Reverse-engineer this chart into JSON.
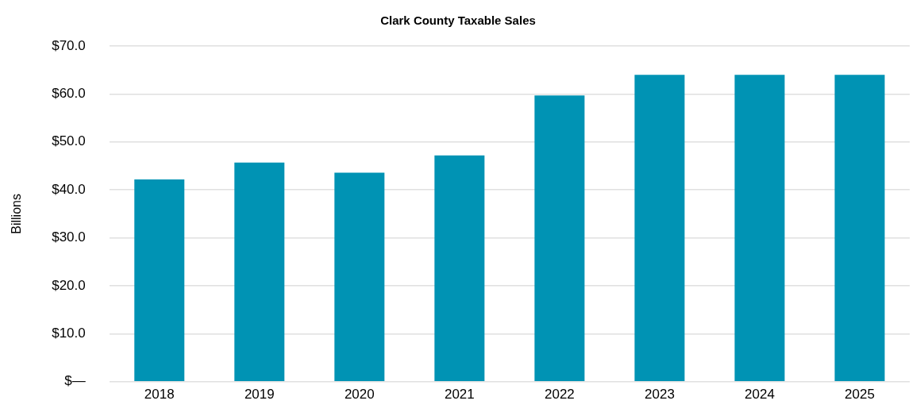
{
  "chart_data": {
    "type": "bar",
    "title": "Clark County Taxable Sales",
    "ylabel": "Billions",
    "categories": [
      "2018",
      "2019",
      "2020",
      "2021",
      "2022",
      "2023",
      "2024",
      "2025"
    ],
    "values": [
      42.2,
      45.7,
      43.6,
      47.2,
      59.7,
      64.0,
      64.0,
      64.0
    ],
    "color": "#0093b4",
    "ylim": [
      0,
      70
    ],
    "yticks": [
      {
        "value": 0,
        "label": "$—"
      },
      {
        "value": 10,
        "label": "$10.0"
      },
      {
        "value": 20,
        "label": "$20.0"
      },
      {
        "value": 30,
        "label": "$30.0"
      },
      {
        "value": 40,
        "label": "$40.0"
      },
      {
        "value": 50,
        "label": "$50.0"
      },
      {
        "value": 60,
        "label": "$60.0"
      },
      {
        "value": 70,
        "label": "$70.0"
      }
    ],
    "grid": "y",
    "legend": false
  }
}
